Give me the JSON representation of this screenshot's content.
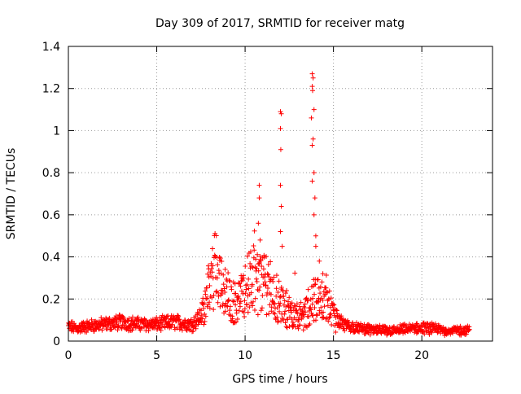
{
  "chart_data": {
    "type": "scatter",
    "title": "Day 309 of 2017, SRMTID for receiver matg",
    "xlabel": "GPS time / hours",
    "ylabel": "SRMTID / TECUs",
    "xlim": [
      0,
      24
    ],
    "ylim": [
      0,
      1.4
    ],
    "x_ticks": [
      0,
      5,
      10,
      15,
      20
    ],
    "x_tick_labels": [
      "0",
      "5",
      "10",
      "15",
      "20"
    ],
    "y_ticks": [
      0,
      0.2,
      0.4,
      0.6,
      0.8,
      1.0,
      1.2,
      1.4
    ],
    "y_tick_labels": [
      "0",
      "0.2",
      "0.4",
      "0.6",
      "0.8",
      "1",
      "1.2",
      "1.4"
    ],
    "grid": true,
    "marker": "+",
    "series": [
      {
        "name": "SRMTID",
        "color": "#ff0000",
        "envelope": [
          [
            0,
            0.07
          ],
          [
            0.5,
            0.06
          ],
          [
            1,
            0.07
          ],
          [
            2,
            0.08
          ],
          [
            3,
            0.09
          ],
          [
            4,
            0.08
          ],
          [
            5,
            0.08
          ],
          [
            6,
            0.09
          ],
          [
            7,
            0.08
          ],
          [
            7.5,
            0.12
          ],
          [
            8.0,
            0.25
          ],
          [
            8.3,
            0.35
          ],
          [
            8.5,
            0.32
          ],
          [
            8.8,
            0.22
          ],
          [
            9.2,
            0.18
          ],
          [
            9.6,
            0.18
          ],
          [
            10.0,
            0.25
          ],
          [
            10.4,
            0.3
          ],
          [
            10.8,
            0.28
          ],
          [
            11.2,
            0.3
          ],
          [
            11.6,
            0.22
          ],
          [
            12.0,
            0.18
          ],
          [
            12.4,
            0.13
          ],
          [
            12.8,
            0.14
          ],
          [
            13.2,
            0.11
          ],
          [
            13.6,
            0.15
          ],
          [
            14.0,
            0.2
          ],
          [
            14.4,
            0.2
          ],
          [
            15.0,
            0.12
          ],
          [
            15.5,
            0.08
          ],
          [
            16.5,
            0.06
          ],
          [
            17.5,
            0.05
          ],
          [
            18.5,
            0.05
          ],
          [
            19.5,
            0.06
          ],
          [
            20.5,
            0.06
          ],
          [
            21.5,
            0.05
          ],
          [
            22.7,
            0.05
          ]
        ],
        "spikes": [
          [
            10.8,
            0.74
          ],
          [
            10.8,
            0.68
          ],
          [
            10.75,
            0.56
          ],
          [
            10.85,
            0.48
          ],
          [
            12.0,
            1.09
          ],
          [
            12.05,
            1.08
          ],
          [
            12.0,
            1.01
          ],
          [
            12.02,
            0.91
          ],
          [
            12.0,
            0.74
          ],
          [
            12.05,
            0.64
          ],
          [
            12.0,
            0.52
          ],
          [
            12.1,
            0.45
          ],
          [
            13.8,
            1.27
          ],
          [
            13.85,
            1.25
          ],
          [
            13.8,
            1.21
          ],
          [
            13.82,
            1.19
          ],
          [
            13.9,
            1.1
          ],
          [
            13.75,
            1.06
          ],
          [
            13.85,
            0.96
          ],
          [
            13.8,
            0.93
          ],
          [
            13.9,
            0.8
          ],
          [
            13.8,
            0.76
          ],
          [
            13.95,
            0.68
          ],
          [
            13.9,
            0.6
          ],
          [
            14.0,
            0.5
          ],
          [
            14.0,
            0.45
          ],
          [
            14.2,
            0.38
          ],
          [
            14.4,
            0.32
          ]
        ]
      }
    ]
  }
}
